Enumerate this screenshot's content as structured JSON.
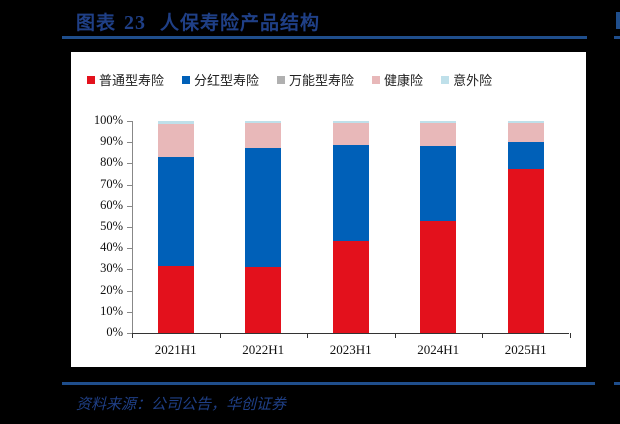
{
  "header": {
    "figure_label": "图表",
    "figure_number": "23",
    "title": "人保寿险产品结构"
  },
  "footer": {
    "source": "资料来源：公司公告，华创证券"
  },
  "colors": {
    "accent_blue": "#1f4e8c",
    "title_text": "#1f3f86"
  },
  "chart_data": {
    "type": "bar",
    "stacked": true,
    "title": "人保寿险产品结构",
    "xlabel": "",
    "ylabel": "",
    "ylim": [
      0,
      100
    ],
    "y_ticks": [
      "0%",
      "10%",
      "20%",
      "30%",
      "40%",
      "50%",
      "60%",
      "70%",
      "80%",
      "90%",
      "100%"
    ],
    "grid": false,
    "legend_position": "top",
    "categories": [
      "2021H1",
      "2022H1",
      "2023H1",
      "2024H1",
      "2025H1"
    ],
    "series": [
      {
        "name": "普通型寿险",
        "color": "#e3111c",
        "values": [
          31.5,
          31.1,
          43.4,
          52.8,
          77.5
        ]
      },
      {
        "name": "分红型寿险",
        "color": "#0060b8",
        "values": [
          51.5,
          56.2,
          45.3,
          35.5,
          12.6
        ]
      },
      {
        "name": "万能型寿险",
        "color": "#b0b0b0",
        "values": [
          0.0,
          0.0,
          0.0,
          0.0,
          0.0
        ]
      },
      {
        "name": "健康险",
        "color": "#e8b8b9",
        "values": [
          15.6,
          12.0,
          10.4,
          10.8,
          9.0
        ]
      },
      {
        "name": "意外险",
        "color": "#bfe0ea",
        "values": [
          1.4,
          0.7,
          0.9,
          0.9,
          0.9
        ]
      }
    ]
  }
}
